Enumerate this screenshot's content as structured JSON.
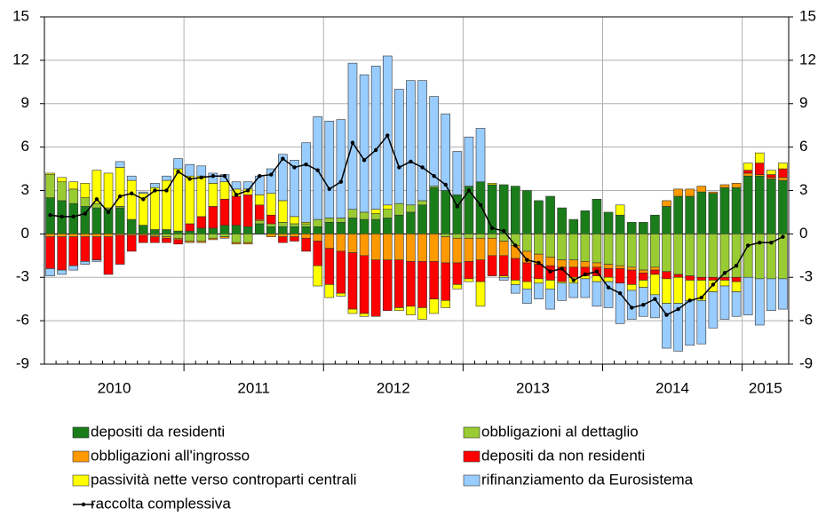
{
  "chart_data": {
    "type": "bar",
    "stacked": true,
    "categories": [
      null,
      null,
      null,
      null,
      null,
      null,
      "2010",
      null,
      null,
      null,
      null,
      null,
      null,
      null,
      null,
      null,
      null,
      null,
      "2011",
      null,
      null,
      null,
      null,
      null,
      null,
      null,
      null,
      null,
      null,
      null,
      "2012",
      null,
      null,
      null,
      null,
      null,
      null,
      null,
      null,
      null,
      null,
      null,
      "2013",
      null,
      null,
      null,
      null,
      null,
      null,
      null,
      null,
      null,
      null,
      null,
      "2014",
      null,
      null,
      null,
      null,
      null,
      null,
      null,
      "2015",
      null
    ],
    "ylim": [
      -9,
      15
    ],
    "yticks": [
      -9,
      -6,
      -3,
      0,
      3,
      6,
      9,
      12,
      15
    ],
    "grid": true,
    "series": [
      {
        "name": "depositi da residenti",
        "color": "#1a7d1a",
        "values": [
          2.5,
          2.3,
          2.1,
          1.9,
          1.8,
          1.7,
          1.8,
          1.0,
          0.6,
          0.3,
          0.3,
          0.2,
          0.2,
          0.4,
          0.4,
          0.6,
          0.6,
          0.5,
          0.7,
          0.5,
          0.5,
          0.5,
          0.5,
          0.5,
          0.8,
          0.8,
          1.1,
          1.0,
          1.0,
          1.1,
          1.3,
          1.5,
          2.0,
          3.2,
          3.0,
          2.7,
          3.3,
          3.6,
          3.4,
          3.4,
          3.3,
          3.0,
          2.3,
          2.6,
          1.8,
          1.0,
          1.6,
          2.4,
          1.5,
          1.3,
          0.8,
          0.8,
          1.3,
          1.9,
          2.6,
          2.6,
          2.9,
          2.8,
          3.2,
          3.2,
          4.0,
          4.0,
          3.8,
          3.7
        ]
      },
      {
        "name": "obbligazioni al dettaglio",
        "color": "#99cc33",
        "values": [
          1.6,
          1.3,
          1.0,
          0.6,
          0.3,
          0.1,
          0.1,
          0.0,
          0.0,
          -0.1,
          -0.2,
          -0.3,
          -0.5,
          -0.5,
          -0.3,
          -0.2,
          -0.6,
          -0.6,
          0.2,
          0.2,
          0.3,
          0.2,
          0.2,
          0.5,
          0.3,
          0.3,
          0.6,
          0.5,
          0.4,
          0.6,
          0.8,
          0.5,
          0.3,
          0.1,
          -0.2,
          -0.3,
          -0.3,
          -0.3,
          -0.3,
          -0.5,
          -0.8,
          -1.2,
          -1.4,
          -1.6,
          -1.8,
          -1.8,
          -1.9,
          -2.0,
          -2.1,
          -2.2,
          -2.3,
          -2.5,
          -2.3,
          -2.6,
          -2.8,
          -2.9,
          -3.0,
          -3.0,
          -3.0,
          -3.0,
          -3.0,
          -3.1,
          -3.1,
          -3.1
        ]
      },
      {
        "name": "obbligazioni all'ingrosso",
        "color": "#ff9900",
        "values": [
          -0.2,
          -0.2,
          -0.2,
          -0.2,
          -0.2,
          -0.2,
          -0.1,
          -0.1,
          -0.1,
          -0.1,
          -0.1,
          -0.1,
          -0.1,
          -0.1,
          -0.1,
          -0.1,
          -0.1,
          -0.1,
          0.1,
          -0.2,
          -0.2,
          -0.2,
          -0.3,
          -0.5,
          -1.0,
          -1.2,
          -1.3,
          -1.5,
          -1.8,
          -1.8,
          -1.8,
          -1.9,
          -1.9,
          -1.9,
          -1.8,
          -1.7,
          -1.6,
          -1.5,
          -1.2,
          -1.0,
          -0.9,
          -0.8,
          -0.7,
          -0.6,
          -0.5,
          -0.5,
          -0.4,
          -0.3,
          -0.3,
          -0.2,
          -0.2,
          -0.2,
          -0.2,
          0.4,
          0.5,
          0.5,
          0.4,
          0.1,
          0.2,
          0.3,
          0.2,
          0.1,
          0.1,
          0.2
        ]
      },
      {
        "name": "depositi da non residenti",
        "color": "#ff0000",
        "values": [
          -2.2,
          -2.3,
          -2.0,
          -1.7,
          -1.6,
          -2.6,
          -2.0,
          -1.1,
          -0.5,
          -0.4,
          -0.3,
          -0.3,
          0.5,
          0.8,
          1.5,
          1.8,
          2.0,
          2.2,
          1.0,
          0.6,
          -0.4,
          -0.3,
          -0.9,
          -1.7,
          -2.5,
          -2.9,
          -3.9,
          -4.0,
          -3.9,
          -3.5,
          -3.3,
          -3.1,
          -3.2,
          -2.6,
          -2.6,
          -1.5,
          -1.2,
          -1.5,
          -1.4,
          -1.4,
          -1.5,
          -1.3,
          -1.0,
          -1.0,
          -1.0,
          -0.7,
          -0.6,
          -0.6,
          -0.6,
          -1.0,
          -1.0,
          -0.5,
          -0.3,
          -0.5,
          -0.2,
          -0.3,
          -0.2,
          -0.2,
          -0.2,
          -0.3,
          0.2,
          0.8,
          0.2,
          0.6
        ]
      },
      {
        "name": "passività nette verso controparti centrali",
        "color": "#ffff00",
        "values": [
          0.1,
          0.3,
          0.5,
          1.0,
          2.3,
          2.4,
          2.7,
          2.7,
          2.2,
          2.9,
          3.4,
          4.3,
          3.3,
          2.8,
          1.6,
          1.2,
          0.5,
          0.4,
          0.7,
          1.5,
          1.5,
          0.5,
          0.1,
          -1.4,
          -0.9,
          -0.2,
          -0.3,
          -0.2,
          0.3,
          0.3,
          -0.2,
          -0.6,
          -0.8,
          -1.0,
          -0.5,
          -0.3,
          -0.2,
          -1.7,
          0.1,
          -0.1,
          -0.3,
          -0.5,
          -0.3,
          -0.6,
          -0.1,
          -0.4,
          -0.2,
          -0.4,
          -0.3,
          0.7,
          -0.4,
          -0.5,
          -1.4,
          -1.7,
          -1.8,
          -1.4,
          -1.4,
          -0.8,
          -0.4,
          -0.7,
          0.5,
          0.7,
          0.3,
          0.4
        ]
      },
      {
        "name": "rifinanziamento da Eurosistema",
        "color": "#99ccff",
        "values": [
          -0.5,
          -0.3,
          -0.3,
          -0.2,
          -0.1,
          0.0,
          0.4,
          0.3,
          0.1,
          0.3,
          0.3,
          0.7,
          0.8,
          0.7,
          0.7,
          0.5,
          0.5,
          0.5,
          1.3,
          1.7,
          3.2,
          3.9,
          5.5,
          7.1,
          6.7,
          6.8,
          10.1,
          9.5,
          9.9,
          10.3,
          7.9,
          8.6,
          8.3,
          6.2,
          5.3,
          3.0,
          3.4,
          3.7,
          0.0,
          -0.2,
          -0.6,
          -1.0,
          -1.1,
          -1.4,
          -1.2,
          -1.0,
          -1.3,
          -1.7,
          -1.8,
          -2.8,
          -2.0,
          -2.0,
          -1.6,
          -3.1,
          -3.3,
          -3.1,
          -3.0,
          -2.5,
          -2.3,
          -1.7,
          -2.6,
          -3.2,
          -2.2,
          -2.1
        ]
      },
      {
        "name": "raccolta complessiva",
        "color": "#000000",
        "type": "line",
        "values": [
          1.3,
          1.2,
          1.2,
          1.4,
          2.4,
          1.5,
          2.6,
          2.8,
          2.4,
          3.0,
          3.0,
          4.3,
          3.8,
          3.9,
          4.0,
          4.0,
          2.7,
          3.0,
          4.0,
          4.1,
          5.2,
          4.6,
          4.8,
          4.4,
          3.1,
          3.6,
          6.3,
          5.1,
          5.8,
          6.8,
          4.6,
          5.0,
          4.6,
          4.0,
          3.4,
          1.9,
          3.0,
          2.0,
          0.4,
          0.2,
          -0.8,
          -1.8,
          -2.0,
          -2.6,
          -2.4,
          -3.2,
          -2.8,
          -2.6,
          -3.7,
          -4.1,
          -5.1,
          -4.9,
          -4.5,
          -5.6,
          -5.2,
          -4.6,
          -4.4,
          -3.5,
          -2.7,
          -2.2,
          -0.8,
          -0.6,
          -0.6,
          -0.2
        ]
      }
    ]
  }
}
